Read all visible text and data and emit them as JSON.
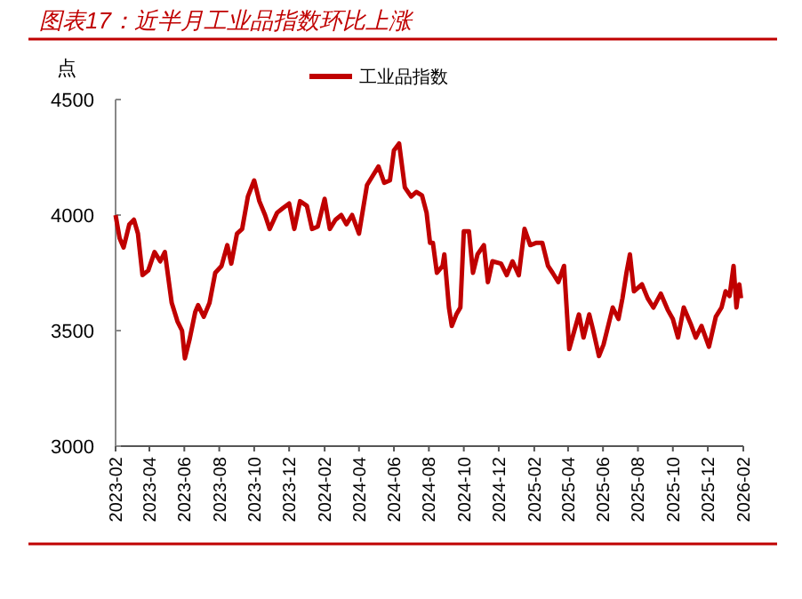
{
  "chart_data": {
    "type": "line",
    "title": "图表17：近半月工业品指数环比上涨",
    "ylabel": "点",
    "legend": "top",
    "grid": false,
    "line_style": "solid",
    "marker": "none",
    "xlim": [
      "2023-02-01",
      "2026-02-01"
    ],
    "xticks": [
      "2023-02",
      "2023-04",
      "2023-06",
      "2023-08",
      "2023-10",
      "2023-12",
      "2024-02",
      "2024-04",
      "2024-06",
      "2024-08",
      "2024-10",
      "2024-12",
      "2025-02",
      "2025-04",
      "2025-06",
      "2025-08",
      "2025-10",
      "2025-12",
      "2026-02"
    ],
    "ylim": [
      3000,
      4500
    ],
    "yticks": [
      3000,
      3500,
      4000,
      4500
    ],
    "x": [
      "2023-02-01",
      "2023-02-08",
      "2023-02-15",
      "2023-02-25",
      "2023-03-05",
      "2023-03-12",
      "2023-03-20",
      "2023-03-30",
      "2023-04-10",
      "2023-04-20",
      "2023-04-28",
      "2023-05-10",
      "2023-05-20",
      "2023-05-28",
      "2023-06-02",
      "2023-06-10",
      "2023-06-20",
      "2023-06-25",
      "2023-07-05",
      "2023-07-15",
      "2023-07-25",
      "2023-08-05",
      "2023-08-15",
      "2023-08-22",
      "2023-09-01",
      "2023-09-10",
      "2023-09-20",
      "2023-10-01",
      "2023-10-10",
      "2023-10-20",
      "2023-10-28",
      "2023-11-10",
      "2023-11-20",
      "2023-12-01",
      "2023-12-10",
      "2023-12-20",
      "2024-01-01",
      "2024-01-10",
      "2024-01-20",
      "2024-02-01",
      "2024-02-10",
      "2024-02-20",
      "2024-03-01",
      "2024-03-10",
      "2024-03-20",
      "2024-04-01",
      "2024-04-15",
      "2024-04-25",
      "2024-05-05",
      "2024-05-15",
      "2024-05-25",
      "2024-06-01",
      "2024-06-10",
      "2024-06-20",
      "2024-07-01",
      "2024-07-10",
      "2024-07-20",
      "2024-07-28",
      "2024-08-03",
      "2024-08-08",
      "2024-08-15",
      "2024-08-25",
      "2024-08-28",
      "2024-09-05",
      "2024-09-10",
      "2024-09-18",
      "2024-09-25",
      "2024-10-01",
      "2024-10-10",
      "2024-10-17",
      "2024-10-25",
      "2024-11-05",
      "2024-11-12",
      "2024-11-20",
      "2024-12-05",
      "2024-12-15",
      "2024-12-25",
      "2025-01-05",
      "2025-01-15",
      "2025-01-25",
      "2025-02-05",
      "2025-02-15",
      "2025-02-25",
      "2025-03-05",
      "2025-03-15",
      "2025-03-25",
      "2025-04-03",
      "2025-04-12",
      "2025-04-20",
      "2025-04-28",
      "2025-05-08",
      "2025-05-15",
      "2025-05-25",
      "2025-06-02",
      "2025-06-10",
      "2025-06-18",
      "2025-06-28",
      "2025-07-05",
      "2025-07-12",
      "2025-07-18",
      "2025-07-25",
      "2025-08-08",
      "2025-08-18",
      "2025-08-28",
      "2025-09-10",
      "2025-09-22",
      "2025-10-01",
      "2025-10-10",
      "2025-10-20",
      "2025-11-01",
      "2025-11-10",
      "2025-11-20",
      "2025-12-03",
      "2025-12-15",
      "2025-12-25",
      "2026-01-01",
      "2026-01-08",
      "2026-01-15",
      "2026-01-20",
      "2026-01-25",
      "2026-01-28"
    ],
    "series": [
      {
        "name": "工业品指数",
        "color": "#c00000",
        "values": [
          4000,
          3900,
          3860,
          3960,
          3980,
          3920,
          3740,
          3760,
          3840,
          3800,
          3840,
          3620,
          3540,
          3500,
          3380,
          3460,
          3580,
          3610,
          3560,
          3620,
          3750,
          3780,
          3870,
          3790,
          3920,
          3940,
          4080,
          4150,
          4060,
          4000,
          3940,
          4010,
          4030,
          4050,
          3940,
          4060,
          4040,
          3940,
          3950,
          4070,
          3940,
          3980,
          4000,
          3960,
          4000,
          3920,
          4130,
          4170,
          4210,
          4140,
          4150,
          4280,
          4310,
          4120,
          4080,
          4100,
          4085,
          4010,
          3880,
          3880,
          3750,
          3780,
          3830,
          3600,
          3520,
          3570,
          3600,
          3930,
          3930,
          3750,
          3830,
          3870,
          3710,
          3800,
          3790,
          3740,
          3800,
          3740,
          3940,
          3870,
          3880,
          3880,
          3780,
          3750,
          3710,
          3780,
          3420,
          3500,
          3570,
          3470,
          3570,
          3500,
          3390,
          3440,
          3520,
          3600,
          3550,
          3640,
          3750,
          3830,
          3670,
          3700,
          3640,
          3600,
          3660,
          3590,
          3550,
          3470,
          3600,
          3530,
          3470,
          3520,
          3430,
          3560,
          3600,
          3670,
          3650,
          3780,
          3600,
          3700,
          3640
        ]
      }
    ]
  }
}
